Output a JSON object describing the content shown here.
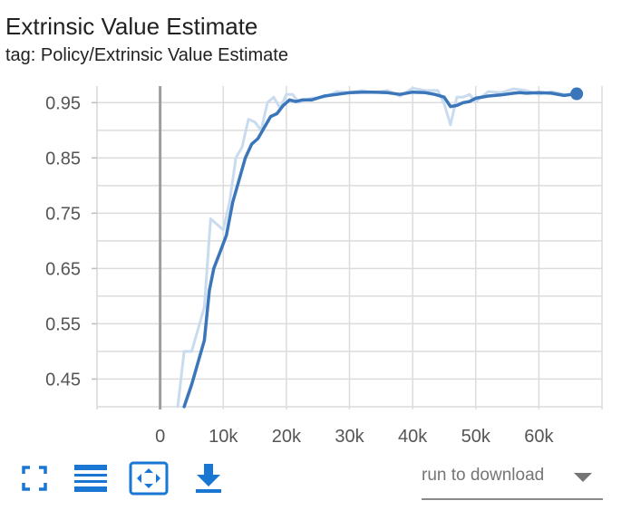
{
  "header": {
    "title": "Extrinsic Value Estimate",
    "tag": "tag: Policy/Extrinsic Value Estimate"
  },
  "toolbar": {
    "icons": [
      "fullscreen-icon",
      "toggle-log-lines-icon",
      "fit-domain-icon",
      "download-icon"
    ],
    "run_select_label": "run to download",
    "accent_color": "#1976d2"
  },
  "chart_data": {
    "type": "line",
    "title": "Extrinsic Value Estimate",
    "xlabel": "",
    "ylabel": "",
    "xlim": [
      -10000,
      70000
    ],
    "ylim": [
      0.395,
      0.98
    ],
    "x_ticks": [
      0,
      10000,
      20000,
      30000,
      40000,
      50000,
      60000
    ],
    "x_tick_labels": [
      "0",
      "10k",
      "20k",
      "30k",
      "40k",
      "50k",
      "60k"
    ],
    "y_ticks": [
      0.45,
      0.55,
      0.65,
      0.75,
      0.85,
      0.95
    ],
    "y_tick_labels": [
      "0.45",
      "0.55",
      "0.65",
      "0.75",
      "0.85",
      "0.95"
    ],
    "grid": true,
    "series": [
      {
        "kind": "raw",
        "color": "#c9dcef",
        "x": [
          2800,
          3800,
          5000,
          6000,
          7000,
          8000,
          9000,
          10000,
          11000,
          12000,
          13000,
          14000,
          15000,
          16000,
          17000,
          18000,
          19000,
          20000,
          21000,
          22000,
          23000,
          24000,
          26000,
          28000,
          30000,
          32000,
          34000,
          36000,
          38000,
          40000,
          42000,
          44000,
          45000,
          46000,
          47000,
          48000,
          49000,
          50000,
          52000,
          54000,
          56000,
          58000,
          60000,
          62000,
          64000,
          66000
        ],
        "y": [
          0.4,
          0.5,
          0.5,
          0.54,
          0.58,
          0.74,
          0.73,
          0.72,
          0.77,
          0.85,
          0.87,
          0.92,
          0.915,
          0.9,
          0.95,
          0.96,
          0.94,
          0.965,
          0.965,
          0.95,
          0.955,
          0.958,
          0.96,
          0.97,
          0.968,
          0.972,
          0.968,
          0.972,
          0.962,
          0.976,
          0.972,
          0.972,
          0.948,
          0.91,
          0.96,
          0.96,
          0.965,
          0.952,
          0.97,
          0.968,
          0.975,
          0.972,
          0.965,
          0.97,
          0.965,
          0.965
        ]
      },
      {
        "kind": "smoothed",
        "color": "#3a76b9",
        "x": [
          3800,
          5000,
          6000,
          7000,
          7800,
          8500,
          9500,
          10500,
          11500,
          12500,
          13500,
          14500,
          15500,
          16500,
          17500,
          18500,
          19500,
          20500,
          21500,
          22500,
          24000,
          26000,
          28000,
          30000,
          32000,
          34000,
          36000,
          38000,
          40000,
          42000,
          43500,
          45000,
          46000,
          47000,
          48000,
          49000,
          50000,
          52000,
          54000,
          56000,
          57000,
          58000,
          60000,
          62000,
          64000,
          66000
        ],
        "y": [
          0.4,
          0.44,
          0.48,
          0.52,
          0.61,
          0.65,
          0.68,
          0.71,
          0.77,
          0.81,
          0.85,
          0.875,
          0.885,
          0.905,
          0.925,
          0.93,
          0.945,
          0.955,
          0.952,
          0.955,
          0.955,
          0.962,
          0.965,
          0.968,
          0.969,
          0.969,
          0.968,
          0.965,
          0.969,
          0.968,
          0.965,
          0.96,
          0.943,
          0.945,
          0.95,
          0.952,
          0.958,
          0.962,
          0.964,
          0.967,
          0.968,
          0.967,
          0.968,
          0.967,
          0.963,
          0.966
        ]
      }
    ]
  }
}
